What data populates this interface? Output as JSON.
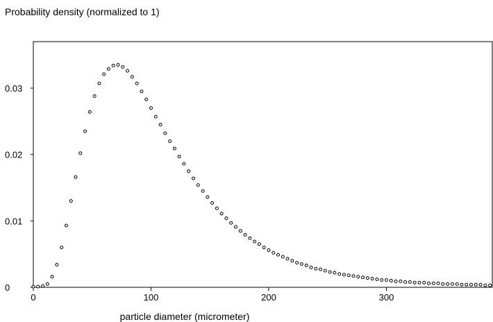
{
  "chart_data": {
    "type": "scatter",
    "title": "Probability density (normalized to 1)",
    "xlabel": "particle diameter (micrometer)",
    "ylabel": "",
    "xlim": [
      0,
      390
    ],
    "ylim": [
      0,
      0.037
    ],
    "xticks": [
      0,
      100,
      200,
      300
    ],
    "xtick_labels": [
      "0",
      "100",
      "200",
      "300"
    ],
    "yticks": [
      0,
      0.01,
      0.02,
      0.03
    ],
    "ytick_labels": [
      "0",
      "0.01",
      "0.02",
      "0.03"
    ],
    "grid": false,
    "marker": "open-circle",
    "marker_color": "#000000",
    "series": [
      {
        "x": [
          0,
          4,
          8,
          12,
          16,
          20,
          24,
          28,
          32,
          36,
          40,
          44,
          48,
          52,
          56,
          60,
          64,
          68,
          72,
          76,
          80,
          84,
          88,
          92,
          96,
          100,
          104,
          108,
          112,
          116,
          120,
          124,
          128,
          132,
          136,
          140,
          144,
          148,
          152,
          156,
          160,
          164,
          168,
          172,
          176,
          180,
          184,
          188,
          192,
          196,
          200,
          204,
          208,
          212,
          216,
          220,
          224,
          228,
          232,
          236,
          240,
          244,
          248,
          252,
          256,
          260,
          264,
          268,
          272,
          276,
          280,
          284,
          288,
          292,
          296,
          300,
          304,
          308,
          312,
          316,
          320,
          324,
          328,
          332,
          336,
          340,
          344,
          348,
          352,
          356,
          360,
          364,
          368,
          372,
          376,
          380,
          384,
          388
        ],
        "y": [
          0.0001,
          0.0001,
          0.0002,
          0.0005,
          0.0016,
          0.0034,
          0.006,
          0.0093,
          0.013,
          0.0166,
          0.0202,
          0.0235,
          0.0264,
          0.0288,
          0.0307,
          0.0321,
          0.0329,
          0.0334,
          0.0335,
          0.0332,
          0.0326,
          0.0317,
          0.0307,
          0.0295,
          0.0283,
          0.027,
          0.0257,
          0.0245,
          0.0232,
          0.022,
          0.0209,
          0.0197,
          0.0186,
          0.0175,
          0.0164,
          0.0154,
          0.0145,
          0.0136,
          0.0127,
          0.0119,
          0.0111,
          0.0104,
          0.0097,
          0.0091,
          0.0085,
          0.0079,
          0.0074,
          0.0069,
          0.0065,
          0.006,
          0.0056,
          0.0052,
          0.0049,
          0.0046,
          0.0043,
          0.004,
          0.0037,
          0.0035,
          0.0033,
          0.003,
          0.0028,
          0.0027,
          0.0025,
          0.0023,
          0.0022,
          0.002,
          0.0019,
          0.0018,
          0.0017,
          0.0016,
          0.0015,
          0.0014,
          0.0013,
          0.0012,
          0.0011,
          0.0011,
          0.001,
          0.0009,
          0.0009,
          0.0008,
          0.0008,
          0.0007,
          0.0007,
          0.0007,
          0.0006,
          0.0006,
          0.0006,
          0.0005,
          0.0005,
          0.0005,
          0.0005,
          0.0004,
          0.0004,
          0.0004,
          0.0004,
          0.0004,
          0.0003,
          0.0003
        ]
      }
    ]
  }
}
